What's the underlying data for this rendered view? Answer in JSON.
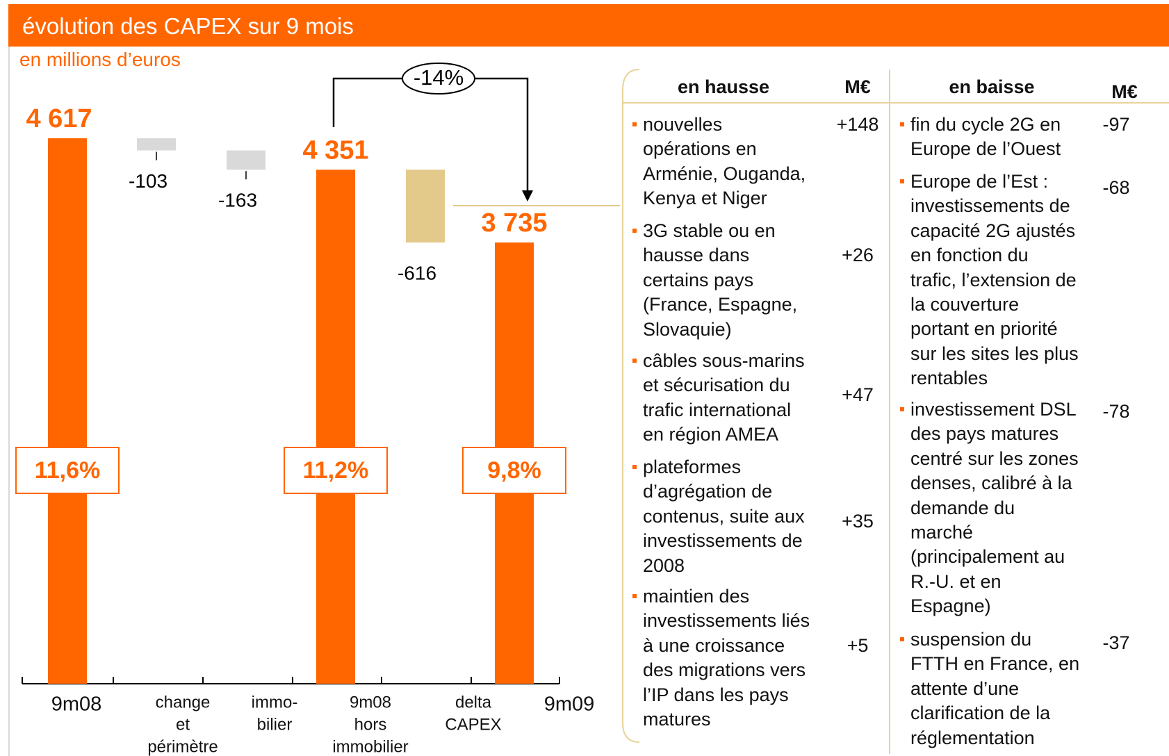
{
  "header": {
    "title": "évolution des CAPEX sur 9 mois",
    "subtitle": "en millions d’euros"
  },
  "chart_data": {
    "type": "waterfall",
    "categories": [
      [
        "9m08"
      ],
      [
        "change",
        "et",
        "périmètre"
      ],
      [
        "immo-",
        "bilier"
      ],
      [
        "9m08",
        "hors",
        "immobilier"
      ],
      [
        "delta",
        "CAPEX"
      ],
      [
        "9m09"
      ]
    ],
    "measures": [
      "total",
      "relative",
      "relative",
      "total",
      "relative",
      "total"
    ],
    "values": [
      4617,
      -103,
      -163,
      4351,
      -616,
      3735
    ],
    "value_labels": [
      "4 617",
      "-103",
      "-163",
      "4 351",
      "-616",
      "3 735"
    ],
    "colors": [
      "#ff6600",
      "#d9d9d9",
      "#d9d9d9",
      "#ff6600",
      "#e3c98a",
      "#ff6600"
    ],
    "ratio_labels": [
      "11,6%",
      null,
      null,
      "11,2%",
      null,
      "9,8%"
    ],
    "annotation": "-14%"
  },
  "table": {
    "headers": [
      "en hausse",
      "M€",
      "en baisse",
      "M€"
    ],
    "increase": [
      {
        "lines": [
          "nouvelles",
          "opérations en",
          "Arménie, Ouganda,",
          "Kenya et Niger"
        ],
        "value": "+148"
      },
      {
        "lines": [
          "3G stable ou en",
          "hausse dans",
          "certains pays",
          "(France, Espagne,",
          "Slovaquie)"
        ],
        "value": "+26"
      },
      {
        "lines": [
          "câbles sous-marins",
          "et sécurisation du",
          "trafic international",
          "en région AMEA"
        ],
        "value": "+47"
      },
      {
        "lines": [
          "plateformes",
          "d’agrégation de",
          "contenus, suite aux",
          "investissements de",
          "2008"
        ],
        "value": "+35"
      },
      {
        "lines": [
          "maintien des",
          "investissements liés",
          "à une croissance",
          "des migrations vers",
          "l’IP dans les pays",
          "matures"
        ],
        "value": "+5"
      }
    ],
    "decrease": [
      {
        "lines": [
          "fin du cycle 2G en",
          "Europe de l’Ouest"
        ],
        "value": "-97"
      },
      {
        "lines": [
          "Europe de l’Est :",
          "investissements de",
          "capacité 2G ajustés",
          "en fonction du",
          "trafic, l’extension de",
          "la couverture",
          "portant en priorité",
          "sur les sites les plus",
          "rentables"
        ],
        "value": "-68"
      },
      {
        "lines": [
          "investissement DSL",
          "des pays matures",
          "centré sur les zones",
          "denses, calibré à la",
          "demande du",
          "marché",
          "(principalement au",
          "R.-U. et en",
          "Espagne)"
        ],
        "value": "-78"
      },
      {
        "lines": [
          "suspension du",
          "FTTH en France, en",
          "attente d’une",
          "clarification de la",
          "réglementation"
        ],
        "value": "-37"
      }
    ]
  }
}
